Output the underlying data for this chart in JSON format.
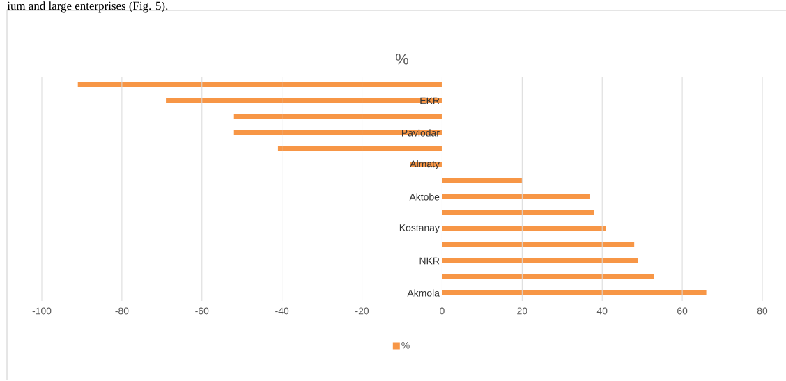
{
  "chart_data": {
    "type": "bar",
    "orientation": "horizontal",
    "title": "%",
    "annotations": [
      "ium and large enterprises (Fig. 5)."
    ],
    "categories": [
      null,
      "EKR",
      null,
      "Pavlodar",
      null,
      "Almaty",
      null,
      "Aktobe",
      null,
      "Kostanay",
      null,
      "NKR",
      null,
      "Akmola"
    ],
    "series": [
      {
        "name": "%",
        "color": "#f79646",
        "values": [
          -91,
          -69,
          -52,
          -52,
          -41,
          -8,
          20,
          37,
          38,
          41,
          48,
          49,
          53,
          66
        ]
      }
    ],
    "xlim": [
      -100,
      80
    ],
    "xticks": [
      -100,
      -80,
      -60,
      -40,
      -20,
      0,
      20,
      40,
      60,
      80
    ],
    "grid": "x",
    "legend": "bottom"
  }
}
